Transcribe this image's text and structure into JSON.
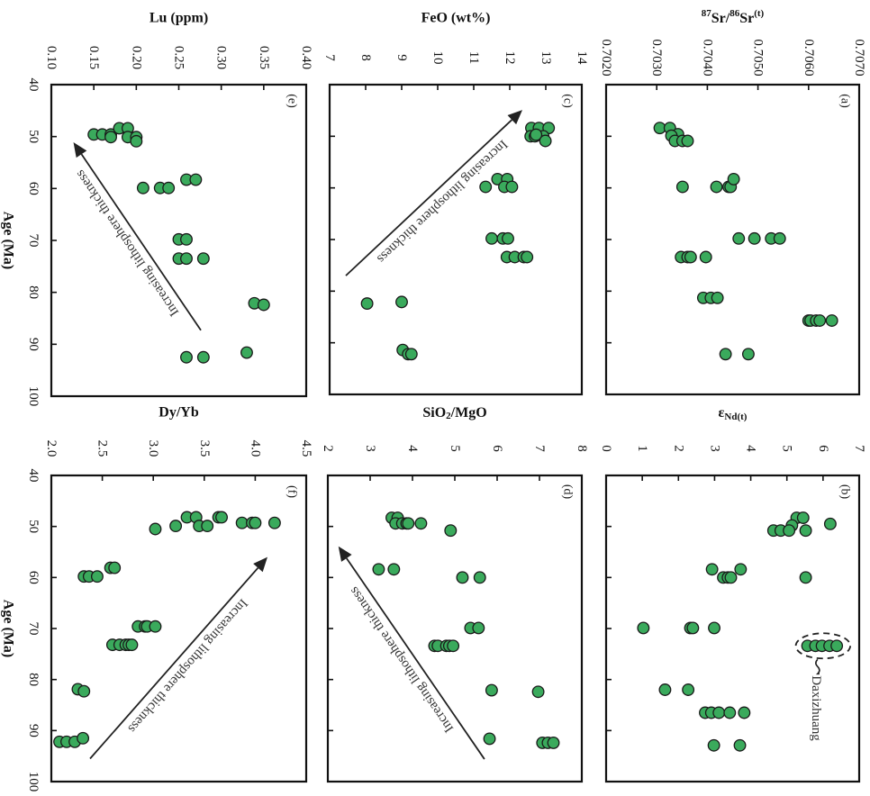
{
  "chart_data": [
    {
      "id": "a",
      "type": "scatter",
      "panel_label": "(a)",
      "title": "",
      "xlabel": "Age (Ma)",
      "ylabel": "87Sr/86Sr(t)",
      "ylabel_parts": {
        "pre1": "87",
        "mid1": "Sr/",
        "pre2": "86",
        "mid2": "Sr",
        "post": "(t)"
      },
      "xlim": [
        40,
        100
      ],
      "ylim": [
        0.702,
        0.707
      ],
      "xticks": [
        "40",
        "50",
        "60",
        "70",
        "80",
        "90",
        "100"
      ],
      "yticks": [
        "0.7020",
        "0.7030",
        "0.7040",
        "0.7050",
        "0.7060",
        "0.7070"
      ],
      "orientation": "rotated-90-clockwise",
      "points": [
        [
          48.4,
          0.70306
        ],
        [
          48.4,
          0.70326
        ],
        [
          49.6,
          0.70342
        ],
        [
          49.9,
          0.70329
        ],
        [
          50.9,
          0.70336
        ],
        [
          50.9,
          0.70351
        ],
        [
          50.9,
          0.70361
        ],
        [
          59.8,
          0.70351
        ],
        [
          59.8,
          0.70418
        ],
        [
          59.8,
          0.70442
        ],
        [
          59.8,
          0.70446
        ],
        [
          58.3,
          0.70452
        ],
        [
          69.8,
          0.70462
        ],
        [
          69.8,
          0.70493
        ],
        [
          69.8,
          0.70526
        ],
        [
          69.8,
          0.70543
        ],
        [
          73.4,
          0.70348
        ],
        [
          73.4,
          0.70361
        ],
        [
          73.4,
          0.70367
        ],
        [
          73.4,
          0.70397
        ],
        [
          81.3,
          0.70392
        ],
        [
          81.3,
          0.70407
        ],
        [
          81.3,
          0.7042
        ],
        [
          85.7,
          0.706
        ],
        [
          85.7,
          0.70604
        ],
        [
          85.7,
          0.70615
        ],
        [
          85.7,
          0.70622
        ],
        [
          85.7,
          0.70646
        ],
        [
          92.2,
          0.70436
        ],
        [
          92.2,
          0.70481
        ]
      ]
    },
    {
      "id": "b",
      "type": "scatter",
      "panel_label": "(b)",
      "title": "",
      "xlabel": "Age (Ma)",
      "ylabel": "εNd(t)",
      "ylabel_parts": {
        "main": "ε",
        "sub": "Nd(t)"
      },
      "xlim": [
        40,
        100
      ],
      "ylim": [
        0,
        7
      ],
      "xticks": [
        "40",
        "50",
        "60",
        "70",
        "80",
        "90",
        "100"
      ],
      "yticks": [
        "0",
        "1",
        "2",
        "3",
        "4",
        "5",
        "6",
        "7"
      ],
      "orientation": "rotated-90-clockwise",
      "annotation": {
        "text": "Daxizhuang",
        "encloses_age": 73.4,
        "encloses_range": [
          5.57,
          6.38
        ]
      },
      "points": [
        [
          48.3,
          5.27
        ],
        [
          48.3,
          5.45
        ],
        [
          49.8,
          5.14
        ],
        [
          50.8,
          4.63
        ],
        [
          50.8,
          4.83
        ],
        [
          50.8,
          5.06
        ],
        [
          50.8,
          5.52
        ],
        [
          49.5,
          6.2
        ],
        [
          58.4,
          2.93
        ],
        [
          58.4,
          3.72
        ],
        [
          60.0,
          3.24
        ],
        [
          60.0,
          3.37
        ],
        [
          60.0,
          3.45
        ],
        [
          60.0,
          5.52
        ],
        [
          69.9,
          1.03
        ],
        [
          69.9,
          2.33
        ],
        [
          69.9,
          2.4
        ],
        [
          69.9,
          2.99
        ],
        [
          73.4,
          5.57
        ],
        [
          73.4,
          5.79
        ],
        [
          73.4,
          5.97
        ],
        [
          73.4,
          6.18
        ],
        [
          73.4,
          6.38
        ],
        [
          82.0,
          1.63
        ],
        [
          82.0,
          2.27
        ],
        [
          86.5,
          2.74
        ],
        [
          86.5,
          2.91
        ],
        [
          86.5,
          3.12
        ],
        [
          86.5,
          3.42
        ],
        [
          86.5,
          3.82
        ],
        [
          92.9,
          2.98
        ],
        [
          92.9,
          3.7
        ]
      ]
    },
    {
      "id": "c",
      "type": "scatter",
      "panel_label": "(c)",
      "title": "",
      "xlabel": "Age (Ma)",
      "ylabel": "FeO (wt%)",
      "xlim": [
        40,
        100
      ],
      "ylim": [
        7,
        14
      ],
      "xticks": [
        "40",
        "50",
        "60",
        "70",
        "80",
        "90",
        "100"
      ],
      "yticks": [
        "7",
        "8",
        "9",
        "10",
        "11",
        "12",
        "13",
        "14"
      ],
      "orientation": "rotated-90-clockwise",
      "arrow": {
        "text": "Increasing lithosphere thickness",
        "from": [
          77,
          7.45
        ],
        "to": [
          44.9,
          12.35
        ]
      },
      "points": [
        [
          48.4,
          12.6
        ],
        [
          48.4,
          12.81
        ],
        [
          48.4,
          13.08
        ],
        [
          50.0,
          12.58
        ],
        [
          50.0,
          12.7
        ],
        [
          50.0,
          12.93
        ],
        [
          49.7,
          12.73
        ],
        [
          50.9,
          12.99
        ],
        [
          59.8,
          11.33
        ],
        [
          58.3,
          11.66
        ],
        [
          58.3,
          11.93
        ],
        [
          59.8,
          11.85
        ],
        [
          59.8,
          12.06
        ],
        [
          69.8,
          11.5
        ],
        [
          69.8,
          11.81
        ],
        [
          69.8,
          11.95
        ],
        [
          73.4,
          11.92
        ],
        [
          73.4,
          12.14
        ],
        [
          73.4,
          12.39
        ],
        [
          73.4,
          12.48
        ],
        [
          82.4,
          8.04
        ],
        [
          82.1,
          9.0
        ],
        [
          91.4,
          9.03
        ],
        [
          92.2,
          9.18
        ],
        [
          92.2,
          9.27
        ]
      ]
    },
    {
      "id": "d",
      "type": "scatter",
      "panel_label": "(d)",
      "title": "",
      "xlabel": "Age (Ma)",
      "ylabel": "SiO2/MgO",
      "ylabel_parts": {
        "main": "SiO",
        "sub": "2",
        "post": "/MgO"
      },
      "xlim": [
        40,
        100
      ],
      "ylim": [
        2,
        8
      ],
      "xticks": [
        "40",
        "50",
        "60",
        "70",
        "80",
        "90",
        "100"
      ],
      "yticks": [
        "2",
        "3",
        "4",
        "5",
        "6",
        "7",
        "8"
      ],
      "orientation": "rotated-90-clockwise",
      "arrow": {
        "text": "Increasing lithosphere thickness",
        "from": [
          95.6,
          5.7
        ],
        "to": [
          53.9,
          2.25
        ]
      },
      "points": [
        [
          48.3,
          3.51
        ],
        [
          48.3,
          3.65
        ],
        [
          49.4,
          3.6
        ],
        [
          49.4,
          3.76
        ],
        [
          49.4,
          3.86
        ],
        [
          49.4,
          3.9
        ],
        [
          49.4,
          4.2
        ],
        [
          50.8,
          4.9
        ],
        [
          58.4,
          3.2
        ],
        [
          58.4,
          3.56
        ],
        [
          60.0,
          5.18
        ],
        [
          60.0,
          5.59
        ],
        [
          69.9,
          5.37
        ],
        [
          69.9,
          5.56
        ],
        [
          73.4,
          4.52
        ],
        [
          73.4,
          4.6
        ],
        [
          73.4,
          4.8
        ],
        [
          73.4,
          4.87
        ],
        [
          73.4,
          4.96
        ],
        [
          82.1,
          5.87
        ],
        [
          82.4,
          6.97
        ],
        [
          91.6,
          5.82
        ],
        [
          92.4,
          7.07
        ],
        [
          92.4,
          7.2
        ],
        [
          92.4,
          7.33
        ]
      ]
    },
    {
      "id": "e",
      "type": "scatter",
      "panel_label": "(e)",
      "title": "",
      "xlabel": "Age (Ma)",
      "ylabel": "Lu (ppm)",
      "xlim": [
        40,
        100
      ],
      "ylim": [
        0.1,
        0.4
      ],
      "xticks": [
        "40",
        "50",
        "60",
        "70",
        "80",
        "90",
        "100"
      ],
      "yticks": [
        "0.10",
        "0.15",
        "0.20",
        "0.25",
        "0.30",
        "0.35",
        "0.40"
      ],
      "orientation": "rotated-90-clockwise",
      "arrow": {
        "text": "Increasing lithosphere thickness",
        "from": [
          87.3,
          0.276
        ],
        "to": [
          51.1,
          0.126
        ]
      },
      "points": [
        [
          49.6,
          0.15
        ],
        [
          49.6,
          0.16
        ],
        [
          49.6,
          0.17
        ],
        [
          50.1,
          0.17
        ],
        [
          48.4,
          0.18
        ],
        [
          48.4,
          0.19
        ],
        [
          50.1,
          0.19
        ],
        [
          50.1,
          0.2
        ],
        [
          50.9,
          0.2
        ],
        [
          59.9,
          0.208
        ],
        [
          59.9,
          0.228
        ],
        [
          59.9,
          0.238
        ],
        [
          58.3,
          0.259
        ],
        [
          58.3,
          0.27
        ],
        [
          69.8,
          0.25
        ],
        [
          69.8,
          0.259
        ],
        [
          73.5,
          0.25
        ],
        [
          73.5,
          0.259
        ],
        [
          73.5,
          0.279
        ],
        [
          82.1,
          0.339
        ],
        [
          82.4,
          0.35
        ],
        [
          92.5,
          0.259
        ],
        [
          92.5,
          0.279
        ],
        [
          91.6,
          0.33
        ]
      ]
    },
    {
      "id": "f",
      "type": "scatter",
      "panel_label": "(f)",
      "title": "",
      "xlabel": "Age (Ma)",
      "ylabel": "Dy/Yb",
      "xlim": [
        40,
        100
      ],
      "ylim": [
        2.0,
        4.5
      ],
      "xticks": [
        "40",
        "50",
        "60",
        "70",
        "80",
        "90",
        "100"
      ],
      "yticks": [
        "2.0",
        "2.5",
        "3.0",
        "3.5",
        "4.0",
        "4.5"
      ],
      "orientation": "rotated-90-clockwise",
      "arrow": {
        "text": "Increasing lithosphere thickness",
        "from": [
          95.5,
          2.38
        ],
        "to": [
          56.0,
          4.12
        ]
      },
      "points": [
        [
          50.5,
          3.02
        ],
        [
          49.9,
          3.22
        ],
        [
          48.2,
          3.33
        ],
        [
          48.2,
          3.42
        ],
        [
          49.9,
          3.45
        ],
        [
          49.9,
          3.53
        ],
        [
          48.2,
          3.64
        ],
        [
          48.2,
          3.67
        ],
        [
          49.3,
          3.87
        ],
        [
          49.3,
          3.97
        ],
        [
          49.3,
          4.0
        ],
        [
          49.3,
          4.19
        ],
        [
          59.8,
          2.32
        ],
        [
          59.8,
          2.37
        ],
        [
          59.8,
          2.45
        ],
        [
          58.1,
          2.58
        ],
        [
          58.1,
          2.62
        ],
        [
          69.6,
          2.85
        ],
        [
          69.6,
          2.92
        ],
        [
          69.6,
          2.94
        ],
        [
          69.6,
          3.02
        ],
        [
          73.2,
          2.6
        ],
        [
          73.2,
          2.67
        ],
        [
          73.2,
          2.73
        ],
        [
          73.2,
          2.76
        ],
        [
          73.2,
          2.79
        ],
        [
          81.9,
          2.26
        ],
        [
          82.3,
          2.32
        ],
        [
          92.2,
          2.08
        ],
        [
          92.2,
          2.15
        ],
        [
          92.2,
          2.23
        ],
        [
          91.5,
          2.31
        ]
      ]
    }
  ],
  "shared_axis_label": "Age (Ma)",
  "colors": {
    "marker_fill": "#3aaa5c",
    "marker_stroke": "#1a1a1a",
    "frame": "#111111"
  }
}
